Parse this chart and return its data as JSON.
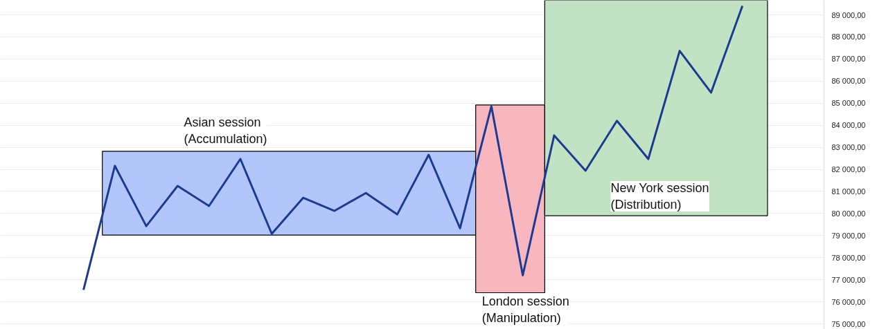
{
  "chart_data": {
    "type": "line",
    "categories": [
      null,
      null,
      null,
      null,
      null,
      null,
      null,
      null,
      null,
      null,
      null,
      null,
      null,
      null,
      null,
      null,
      null,
      null,
      null,
      null,
      null,
      null
    ],
    "series": [
      {
        "color": "#1c3a8f",
        "values": [
          76540,
          82160,
          79430,
          81250,
          80340,
          82470,
          79080,
          80710,
          80120,
          80930,
          79960,
          82660,
          79330,
          84860,
          77200,
          83540,
          81940,
          84200,
          82470,
          87370,
          85480,
          89410
        ]
      }
    ],
    "ylim": [
      74750,
      89660
    ],
    "yticks": [
      {
        "value": 75000,
        "label": "75 000,00"
      },
      {
        "value": 76000,
        "label": "76 000,00"
      },
      {
        "value": 77000,
        "label": "77 000,00"
      },
      {
        "value": 78000,
        "label": "78 000,00"
      },
      {
        "value": 79000,
        "label": "79 000,00"
      },
      {
        "value": 80000,
        "label": "80 000,00"
      },
      {
        "value": 81000,
        "label": "81 000,00"
      },
      {
        "value": 82000,
        "label": "82 000,00"
      },
      {
        "value": 83000,
        "label": "83 000,00"
      },
      {
        "value": 84000,
        "label": "84 000,00"
      },
      {
        "value": 85000,
        "label": "85 000,00"
      },
      {
        "value": 86000,
        "label": "86 000,00"
      },
      {
        "value": 87000,
        "label": "87 000,00"
      },
      {
        "value": 88000,
        "label": "88 000,00"
      },
      {
        "value": 89000,
        "label": "89 000,00"
      }
    ],
    "tick_labels": "y",
    "grid": "y",
    "marker": "none",
    "line_style": "solid",
    "bands": [
      {
        "axis": "y",
        "from": 79020,
        "to": 82820,
        "color": "#b3c6fb",
        "label": "Asian session\n(Accumulation)"
      },
      {
        "axis": "y",
        "from": 76410,
        "to": 84920,
        "color": "#f8b7bf",
        "label": "London session\n(Manipulation)"
      },
      {
        "axis": "y",
        "from": 79900,
        "to": 89660,
        "color": "#c1e3c4",
        "label": "New York session\n(Distribution)"
      }
    ]
  }
}
